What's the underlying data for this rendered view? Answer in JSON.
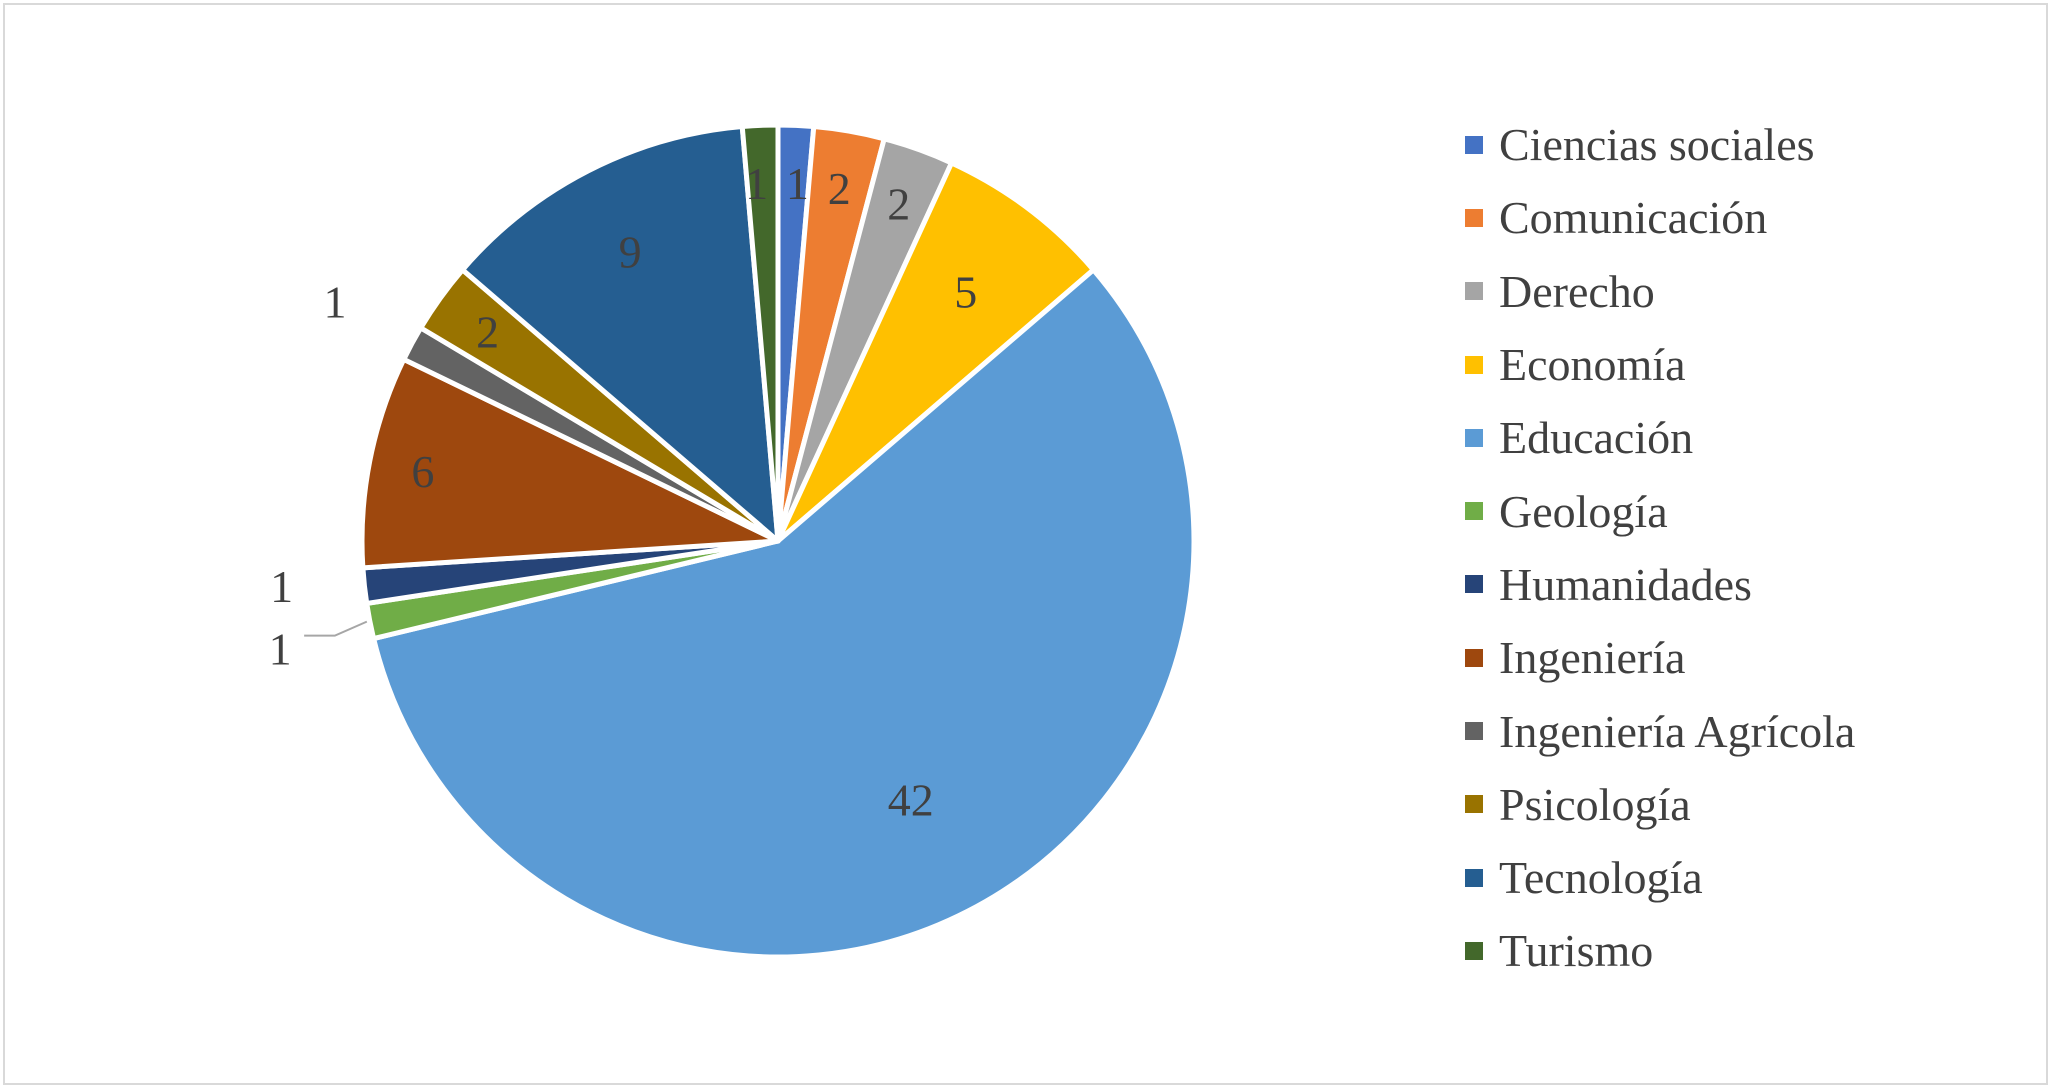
{
  "chart_data": {
    "type": "pie",
    "title": "",
    "legend_position": "right",
    "slices": [
      {
        "label": "Ciencias sociales",
        "value": 1,
        "color": "#4472c4"
      },
      {
        "label": "Comunicación",
        "value": 2,
        "color": "#ed7d31"
      },
      {
        "label": "Derecho",
        "value": 2,
        "color": "#a5a5a5"
      },
      {
        "label": "Economía",
        "value": 5,
        "color": "#ffc000"
      },
      {
        "label": "Educación",
        "value": 42,
        "color": "#5b9bd5"
      },
      {
        "label": "Geología",
        "value": 1,
        "color": "#70ad47"
      },
      {
        "label": "Humanidades",
        "value": 1,
        "color": "#264478"
      },
      {
        "label": "Ingeniería",
        "value": 6,
        "color": "#9e480e"
      },
      {
        "label": "Ingeniería Agrícola",
        "value": 1,
        "color": "#636363"
      },
      {
        "label": "Psicología",
        "value": 2,
        "color": "#997300"
      },
      {
        "label": "Tecnología",
        "value": 9,
        "color": "#255e91"
      },
      {
        "label": "Turismo",
        "value": 1,
        "color": "#43682b"
      }
    ]
  }
}
